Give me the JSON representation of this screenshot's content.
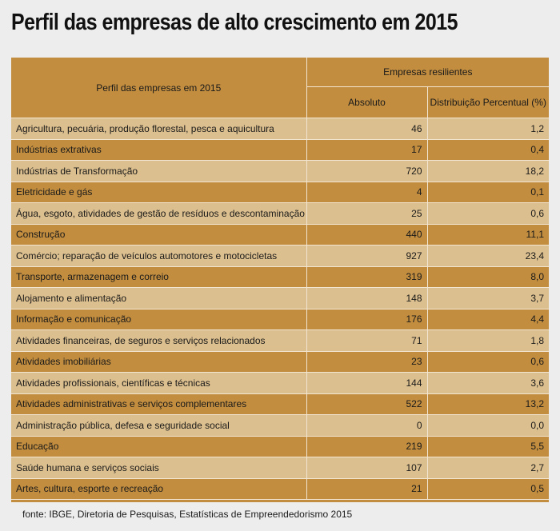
{
  "title": "Perfil das empresas de alto crescimento em 2015",
  "table": {
    "col_profile": "Perfil das empresas em 2015",
    "group_header": "Empresas resilientes",
    "col_absolute": "Absoluto",
    "col_percent": "Distribuição Percentual (%)",
    "rows": [
      {
        "label": "Agricultura, pecuária, produção florestal, pesca e aquicultura",
        "absolute": "46",
        "percent": "1,2"
      },
      {
        "label": "Indústrias extrativas",
        "absolute": "17",
        "percent": "0,4"
      },
      {
        "label": "Indústrias de Transformação",
        "absolute": "720",
        "percent": "18,2"
      },
      {
        "label": "Eletricidade e gás",
        "absolute": "4",
        "percent": "0,1"
      },
      {
        "label": "Água, esgoto, atividades de gestão de resíduos e descontaminação",
        "absolute": "25",
        "percent": "0,6"
      },
      {
        "label": "Construção",
        "absolute": "440",
        "percent": "11,1"
      },
      {
        "label": "Comércio; reparação de veículos automotores e motocicletas",
        "absolute": "927",
        "percent": "23,4"
      },
      {
        "label": "Transporte, armazenagem e correio",
        "absolute": "319",
        "percent": "8,0"
      },
      {
        "label": "Alojamento e alimentação",
        "absolute": "148",
        "percent": "3,7"
      },
      {
        "label": "Informação e comunicação",
        "absolute": "176",
        "percent": "4,4"
      },
      {
        "label": "Atividades financeiras, de seguros e serviços relacionados",
        "absolute": "71",
        "percent": "1,8"
      },
      {
        "label": "Atividades imobiliárias",
        "absolute": "23",
        "percent": "0,6"
      },
      {
        "label": "Atividades profissionais, científicas e técnicas",
        "absolute": "144",
        "percent": "3,6"
      },
      {
        "label": "Atividades administrativas e serviços complementares",
        "absolute": "522",
        "percent": "13,2"
      },
      {
        "label": "Administração pública, defesa e seguridade social",
        "absolute": "0",
        "percent": "0,0"
      },
      {
        "label": "Educação",
        "absolute": "219",
        "percent": "5,5"
      },
      {
        "label": "Saúde humana e serviços sociais",
        "absolute": "107",
        "percent": "2,7"
      },
      {
        "label": "Artes, cultura, esporte e recreação",
        "absolute": "21",
        "percent": "0,5"
      }
    ]
  },
  "source": "fonte: IBGE,  Diretoria de Pesquisas, Estatísticas de Empreendedorismo 2015",
  "colors": {
    "background": "#ededed",
    "header_bg": "#c28d3f",
    "row_light": "#dcbf8e",
    "row_dark": "#c28d3f"
  }
}
